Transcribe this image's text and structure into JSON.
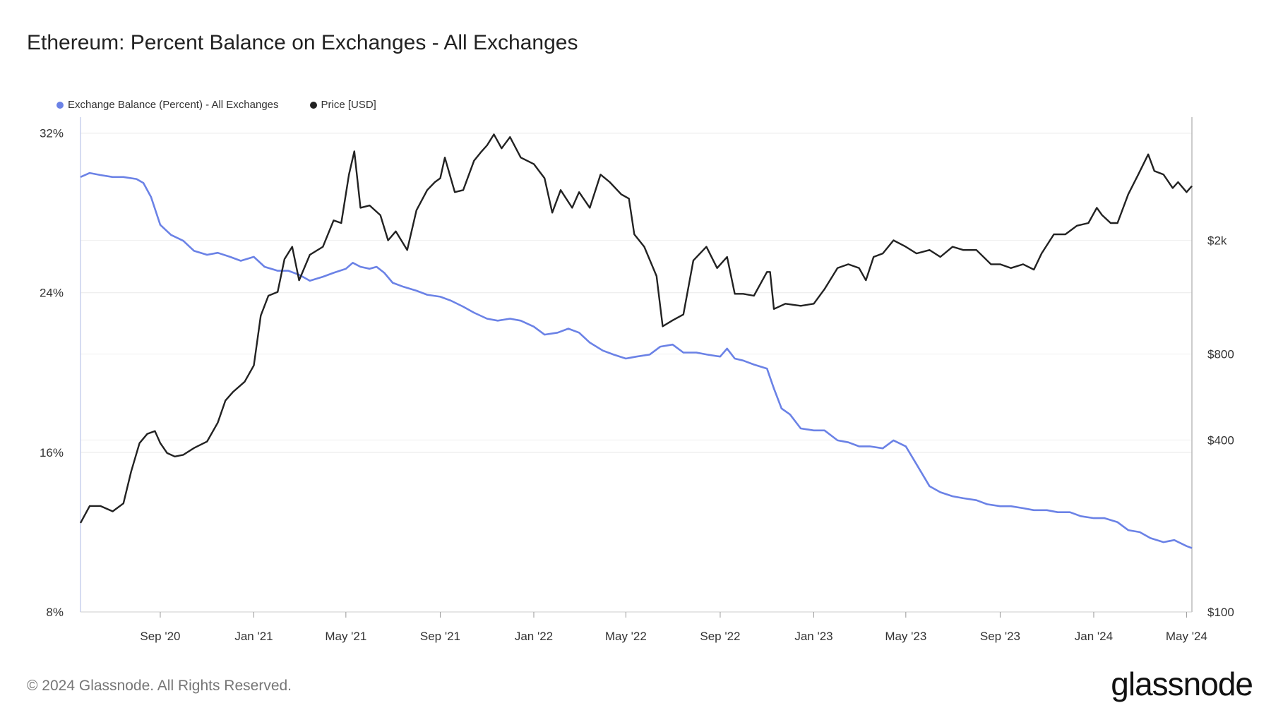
{
  "title": "Ethereum: Percent Balance on Exchanges - All Exchanges",
  "footer": "© 2024 Glassnode. All Rights Reserved.",
  "brand": "glassnode",
  "colors": {
    "balance": "#6b82e6",
    "price": "#222222",
    "grid": "#e8e8e8"
  },
  "chart_data": {
    "type": "line",
    "title": "Ethereum: Percent Balance on Exchanges - All Exchanges",
    "x_tick_labels": [
      "Sep '20",
      "Jan '21",
      "May '21",
      "Sep '21",
      "Jan '22",
      "May '22",
      "Sep '22",
      "Jan '23",
      "May '23",
      "Sep '23",
      "Jan '24",
      "May '24"
    ],
    "x_tick_dates": [
      "2020-09-01",
      "2021-01-01",
      "2021-05-01",
      "2021-09-01",
      "2022-01-01",
      "2022-05-01",
      "2022-09-01",
      "2023-01-01",
      "2023-05-01",
      "2023-09-01",
      "2024-01-01",
      "2024-05-01"
    ],
    "x_range": [
      "2020-05-20",
      "2024-05-08"
    ],
    "y_left": {
      "ticks": [
        "8%",
        "16%",
        "24%",
        "32%"
      ],
      "tick_values": [
        8,
        16,
        24,
        32
      ],
      "range": [
        8,
        32.8
      ]
    },
    "y_right": {
      "ticks": [
        "$100",
        "$400",
        "$800",
        "$2k"
      ],
      "tick_values": [
        100,
        400,
        800,
        2000
      ],
      "scale": "log",
      "range": [
        100,
        5400
      ]
    },
    "legend_placement": "top-left",
    "series": [
      {
        "name": "Exchange Balance (Percent) - All Exchanges",
        "axis": "left",
        "x": [
          "2020-05-20",
          "2020-06-01",
          "2020-06-15",
          "2020-07-01",
          "2020-07-15",
          "2020-08-01",
          "2020-08-10",
          "2020-08-20",
          "2020-09-01",
          "2020-09-15",
          "2020-10-01",
          "2020-10-15",
          "2020-11-01",
          "2020-11-15",
          "2020-12-01",
          "2020-12-15",
          "2021-01-01",
          "2021-01-15",
          "2021-02-01",
          "2021-02-15",
          "2021-03-01",
          "2021-03-15",
          "2021-04-01",
          "2021-04-15",
          "2021-05-01",
          "2021-05-10",
          "2021-05-20",
          "2021-06-01",
          "2021-06-10",
          "2021-06-20",
          "2021-07-01",
          "2021-07-15",
          "2021-08-01",
          "2021-08-15",
          "2021-09-01",
          "2021-09-15",
          "2021-10-01",
          "2021-10-15",
          "2021-11-01",
          "2021-11-15",
          "2021-12-01",
          "2021-12-15",
          "2022-01-01",
          "2022-01-15",
          "2022-02-01",
          "2022-02-15",
          "2022-03-01",
          "2022-03-15",
          "2022-04-01",
          "2022-04-15",
          "2022-05-01",
          "2022-05-15",
          "2022-06-01",
          "2022-06-15",
          "2022-07-01",
          "2022-07-15",
          "2022-08-01",
          "2022-08-15",
          "2022-09-01",
          "2022-09-10",
          "2022-09-20",
          "2022-10-01",
          "2022-10-15",
          "2022-11-01",
          "2022-11-10",
          "2022-11-20",
          "2022-12-01",
          "2022-12-15",
          "2023-01-01",
          "2023-01-15",
          "2023-02-01",
          "2023-02-15",
          "2023-03-01",
          "2023-03-15",
          "2023-04-01",
          "2023-04-15",
          "2023-05-01",
          "2023-05-15",
          "2023-06-01",
          "2023-06-15",
          "2023-07-01",
          "2023-07-15",
          "2023-08-01",
          "2023-08-15",
          "2023-09-01",
          "2023-09-15",
          "2023-10-01",
          "2023-10-15",
          "2023-11-01",
          "2023-11-15",
          "2023-12-01",
          "2023-12-15",
          "2024-01-01",
          "2024-01-15",
          "2024-02-01",
          "2024-02-15",
          "2024-03-01",
          "2024-03-15",
          "2024-04-01",
          "2024-04-15",
          "2024-05-01",
          "2024-05-08"
        ],
        "y": [
          29.8,
          30.0,
          29.9,
          29.8,
          29.8,
          29.7,
          29.5,
          28.8,
          27.4,
          26.9,
          26.6,
          26.1,
          25.9,
          26.0,
          25.8,
          25.6,
          25.8,
          25.3,
          25.1,
          25.1,
          24.9,
          24.6,
          24.8,
          25.0,
          25.2,
          25.5,
          25.3,
          25.2,
          25.3,
          25.0,
          24.5,
          24.3,
          24.1,
          23.9,
          23.8,
          23.6,
          23.3,
          23.0,
          22.7,
          22.6,
          22.7,
          22.6,
          22.3,
          21.9,
          22.0,
          22.2,
          22.0,
          21.5,
          21.1,
          20.9,
          20.7,
          20.8,
          20.9,
          21.3,
          21.4,
          21.0,
          21.0,
          20.9,
          20.8,
          21.2,
          20.7,
          20.6,
          20.4,
          20.2,
          19.2,
          18.2,
          17.9,
          17.2,
          17.1,
          17.1,
          16.6,
          16.5,
          16.3,
          16.3,
          16.2,
          16.6,
          16.3,
          15.4,
          14.3,
          14.0,
          13.8,
          13.7,
          13.6,
          13.4,
          13.3,
          13.3,
          13.2,
          13.1,
          13.1,
          13.0,
          13.0,
          12.8,
          12.7,
          12.7,
          12.5,
          12.1,
          12.0,
          11.7,
          11.5,
          11.6,
          11.3,
          11.2
        ]
      },
      {
        "name": "Price [USD]",
        "axis": "right",
        "x": [
          "2020-05-20",
          "2020-06-01",
          "2020-06-15",
          "2020-07-01",
          "2020-07-15",
          "2020-07-25",
          "2020-08-05",
          "2020-08-15",
          "2020-08-25",
          "2020-09-01",
          "2020-09-10",
          "2020-09-20",
          "2020-10-01",
          "2020-10-15",
          "2020-11-01",
          "2020-11-15",
          "2020-11-25",
          "2020-12-05",
          "2020-12-20",
          "2021-01-01",
          "2021-01-10",
          "2021-01-20",
          "2021-02-01",
          "2021-02-10",
          "2021-02-20",
          "2021-03-01",
          "2021-03-15",
          "2021-04-01",
          "2021-04-15",
          "2021-04-25",
          "2021-05-05",
          "2021-05-12",
          "2021-05-20",
          "2021-06-01",
          "2021-06-15",
          "2021-06-25",
          "2021-07-05",
          "2021-07-20",
          "2021-08-01",
          "2021-08-15",
          "2021-08-25",
          "2021-09-01",
          "2021-09-07",
          "2021-09-20",
          "2021-10-01",
          "2021-10-15",
          "2021-10-25",
          "2021-11-01",
          "2021-11-10",
          "2021-11-20",
          "2021-12-01",
          "2021-12-15",
          "2022-01-01",
          "2022-01-15",
          "2022-01-25",
          "2022-02-05",
          "2022-02-20",
          "2022-03-01",
          "2022-03-15",
          "2022-03-29",
          "2022-04-10",
          "2022-04-25",
          "2022-05-05",
          "2022-05-12",
          "2022-05-25",
          "2022-06-10",
          "2022-06-18",
          "2022-07-01",
          "2022-07-15",
          "2022-07-28",
          "2022-08-14",
          "2022-08-28",
          "2022-09-10",
          "2022-09-20",
          "2022-10-01",
          "2022-10-15",
          "2022-11-01",
          "2022-11-05",
          "2022-11-10",
          "2022-11-25",
          "2022-12-15",
          "2023-01-01",
          "2023-01-15",
          "2023-02-01",
          "2023-02-15",
          "2023-03-01",
          "2023-03-10",
          "2023-03-20",
          "2023-04-01",
          "2023-04-15",
          "2023-05-01",
          "2023-05-15",
          "2023-06-01",
          "2023-06-15",
          "2023-07-01",
          "2023-07-15",
          "2023-08-01",
          "2023-08-20",
          "2023-09-01",
          "2023-09-15",
          "2023-10-01",
          "2023-10-15",
          "2023-10-25",
          "2023-11-10",
          "2023-11-25",
          "2023-12-10",
          "2023-12-25",
          "2024-01-05",
          "2024-01-12",
          "2024-01-23",
          "2024-02-01",
          "2024-02-15",
          "2024-02-28",
          "2024-03-12",
          "2024-03-20",
          "2024-04-01",
          "2024-04-13",
          "2024-04-20",
          "2024-05-01",
          "2024-05-08"
        ],
        "y": [
          205,
          235,
          235,
          225,
          240,
          310,
          390,
          420,
          430,
          390,
          360,
          350,
          355,
          375,
          395,
          460,
          550,
          590,
          640,
          730,
          1090,
          1280,
          1320,
          1720,
          1900,
          1450,
          1780,
          1900,
          2350,
          2300,
          3400,
          4100,
          2600,
          2650,
          2450,
          2000,
          2150,
          1850,
          2550,
          3000,
          3200,
          3300,
          3900,
          2950,
          3000,
          3800,
          4100,
          4300,
          4700,
          4200,
          4600,
          3900,
          3700,
          3300,
          2500,
          3000,
          2600,
          2950,
          2600,
          3400,
          3200,
          2900,
          2800,
          2100,
          1900,
          1500,
          1000,
          1050,
          1100,
          1700,
          1900,
          1600,
          1750,
          1300,
          1300,
          1280,
          1550,
          1550,
          1150,
          1200,
          1180,
          1200,
          1350,
          1600,
          1650,
          1600,
          1450,
          1750,
          1800,
          2000,
          1900,
          1800,
          1850,
          1750,
          1900,
          1850,
          1850,
          1650,
          1650,
          1600,
          1650,
          1580,
          1800,
          2100,
          2100,
          2250,
          2300,
          2600,
          2450,
          2300,
          2300,
          2900,
          3400,
          4000,
          3500,
          3400,
          3050,
          3200,
          2950,
          3100
        ]
      }
    ]
  }
}
